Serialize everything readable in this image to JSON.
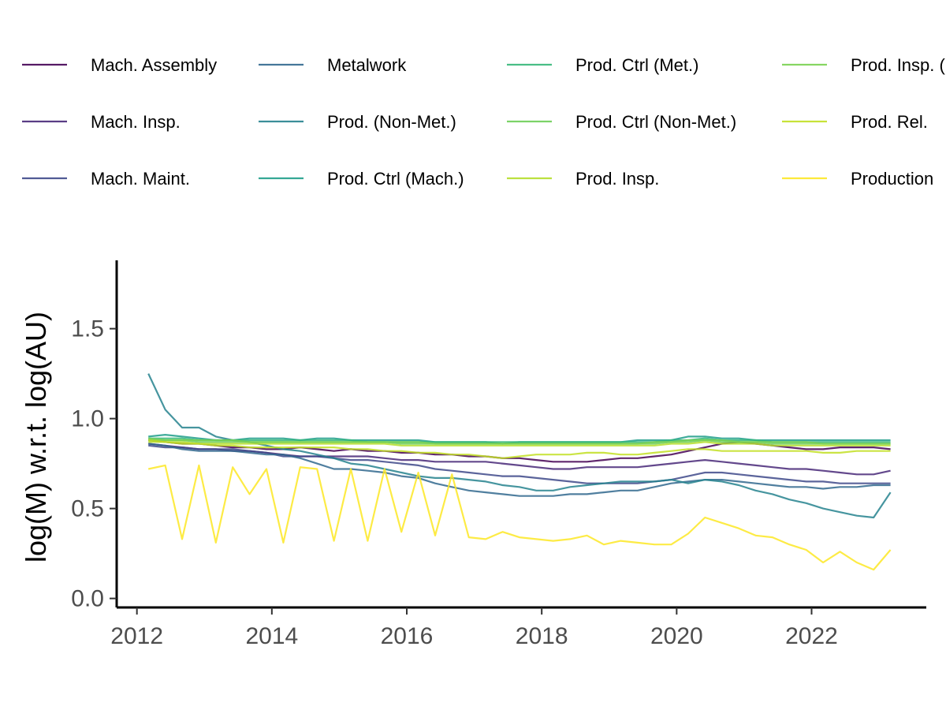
{
  "chart_data": {
    "type": "line",
    "title": "",
    "xlabel": "",
    "ylabel": "log(M) w.r.t. log(AU)",
    "xlim": [
      2011.7,
      2023.7
    ],
    "ylim": [
      -0.05,
      1.88
    ],
    "x_ticks": [
      2012,
      2014,
      2016,
      2018,
      2020,
      2022
    ],
    "x_tick_labels": [
      "2012",
      "2014",
      "2016",
      "2018",
      "2020",
      "2022"
    ],
    "y_ticks": [
      0.0,
      0.5,
      1.0,
      1.5
    ],
    "y_tick_labels": [
      "0.0",
      "0.5",
      "1.0",
      "1.5"
    ],
    "grid": false,
    "legend_position": "top",
    "x_sampling": {
      "start": 2012.17,
      "step": 0.25,
      "count": 45
    },
    "series": [
      {
        "name": "Mach. Assembly",
        "color": "#440154",
        "values": [
          0.88,
          0.87,
          0.86,
          0.86,
          0.85,
          0.84,
          0.84,
          0.83,
          0.83,
          0.84,
          0.83,
          0.82,
          0.83,
          0.82,
          0.82,
          0.81,
          0.81,
          0.8,
          0.8,
          0.79,
          0.79,
          0.78,
          0.78,
          0.77,
          0.76,
          0.76,
          0.76,
          0.77,
          0.78,
          0.78,
          0.79,
          0.8,
          0.82,
          0.84,
          0.86,
          0.87,
          0.86,
          0.85,
          0.84,
          0.83,
          0.83,
          0.84,
          0.84,
          0.84,
          0.83
        ]
      },
      {
        "name": "Mach. Insp.",
        "color": "#482878",
        "values": [
          0.86,
          0.85,
          0.84,
          0.83,
          0.83,
          0.82,
          0.82,
          0.81,
          0.8,
          0.79,
          0.79,
          0.79,
          0.79,
          0.79,
          0.78,
          0.77,
          0.77,
          0.76,
          0.76,
          0.76,
          0.76,
          0.75,
          0.74,
          0.73,
          0.72,
          0.72,
          0.73,
          0.73,
          0.73,
          0.73,
          0.74,
          0.75,
          0.76,
          0.77,
          0.76,
          0.75,
          0.74,
          0.73,
          0.72,
          0.72,
          0.71,
          0.7,
          0.69,
          0.69,
          0.71
        ]
      },
      {
        "name": "Mach. Maint.",
        "color": "#3e4989",
        "values": [
          0.85,
          0.84,
          0.84,
          0.83,
          0.83,
          0.83,
          0.82,
          0.81,
          0.79,
          0.79,
          0.79,
          0.78,
          0.77,
          0.77,
          0.76,
          0.75,
          0.74,
          0.72,
          0.71,
          0.7,
          0.69,
          0.68,
          0.68,
          0.67,
          0.66,
          0.65,
          0.64,
          0.64,
          0.64,
          0.64,
          0.65,
          0.66,
          0.68,
          0.7,
          0.7,
          0.69,
          0.68,
          0.67,
          0.66,
          0.65,
          0.65,
          0.64,
          0.64,
          0.64,
          0.64
        ]
      },
      {
        "name": "Metalwork",
        "color": "#31688e",
        "values": [
          0.86,
          0.85,
          0.83,
          0.82,
          0.82,
          0.82,
          0.81,
          0.8,
          0.8,
          0.78,
          0.75,
          0.72,
          0.72,
          0.71,
          0.7,
          0.68,
          0.67,
          0.64,
          0.62,
          0.6,
          0.59,
          0.58,
          0.57,
          0.57,
          0.57,
          0.58,
          0.58,
          0.59,
          0.6,
          0.6,
          0.62,
          0.64,
          0.65,
          0.66,
          0.66,
          0.65,
          0.64,
          0.63,
          0.62,
          0.62,
          0.61,
          0.62,
          0.62,
          0.63,
          0.63
        ]
      },
      {
        "name": "Prod. (Non-Met.)",
        "color": "#26828e",
        "values": [
          1.25,
          1.05,
          0.95,
          0.95,
          0.9,
          0.88,
          0.87,
          0.85,
          0.83,
          0.82,
          0.8,
          0.78,
          0.75,
          0.74,
          0.72,
          0.7,
          0.68,
          0.67,
          0.67,
          0.66,
          0.65,
          0.63,
          0.62,
          0.6,
          0.6,
          0.62,
          0.63,
          0.64,
          0.65,
          0.65,
          0.65,
          0.66,
          0.64,
          0.66,
          0.65,
          0.63,
          0.6,
          0.58,
          0.55,
          0.53,
          0.5,
          0.48,
          0.46,
          0.45,
          0.59
        ]
      },
      {
        "name": "Prod. Ctrl (Mach.)",
        "color": "#1f9e89",
        "values": [
          0.9,
          0.91,
          0.9,
          0.89,
          0.88,
          0.88,
          0.89,
          0.89,
          0.89,
          0.88,
          0.89,
          0.89,
          0.88,
          0.88,
          0.88,
          0.88,
          0.88,
          0.87,
          0.87,
          0.87,
          0.87,
          0.86,
          0.87,
          0.87,
          0.87,
          0.87,
          0.87,
          0.87,
          0.87,
          0.88,
          0.88,
          0.88,
          0.9,
          0.9,
          0.89,
          0.89,
          0.88,
          0.88,
          0.88,
          0.88,
          0.88,
          0.88,
          0.88,
          0.88,
          0.88
        ]
      },
      {
        "name": "Prod. Ctrl (Met.)",
        "color": "#35b779",
        "values": [
          0.89,
          0.89,
          0.89,
          0.88,
          0.88,
          0.88,
          0.88,
          0.88,
          0.88,
          0.88,
          0.88,
          0.88,
          0.88,
          0.87,
          0.87,
          0.87,
          0.87,
          0.87,
          0.87,
          0.87,
          0.87,
          0.87,
          0.87,
          0.87,
          0.87,
          0.87,
          0.87,
          0.87,
          0.87,
          0.87,
          0.87,
          0.88,
          0.88,
          0.89,
          0.88,
          0.88,
          0.88,
          0.87,
          0.87,
          0.87,
          0.87,
          0.87,
          0.87,
          0.87,
          0.87
        ]
      },
      {
        "name": "Prod. Ctrl (Non-Met.)",
        "color": "#6ece58",
        "values": [
          0.88,
          0.88,
          0.88,
          0.87,
          0.87,
          0.87,
          0.87,
          0.87,
          0.87,
          0.87,
          0.87,
          0.87,
          0.87,
          0.87,
          0.87,
          0.86,
          0.86,
          0.86,
          0.86,
          0.86,
          0.86,
          0.86,
          0.86,
          0.86,
          0.86,
          0.86,
          0.86,
          0.86,
          0.86,
          0.86,
          0.86,
          0.87,
          0.87,
          0.88,
          0.87,
          0.87,
          0.87,
          0.86,
          0.86,
          0.86,
          0.86,
          0.86,
          0.86,
          0.86,
          0.86
        ]
      },
      {
        "name": "Prod. Insp.",
        "color": "#b5de2b",
        "values": [
          0.87,
          0.87,
          0.87,
          0.86,
          0.86,
          0.86,
          0.86,
          0.86,
          0.86,
          0.86,
          0.86,
          0.86,
          0.86,
          0.86,
          0.86,
          0.85,
          0.85,
          0.85,
          0.85,
          0.85,
          0.85,
          0.85,
          0.85,
          0.85,
          0.85,
          0.85,
          0.85,
          0.85,
          0.85,
          0.85,
          0.85,
          0.86,
          0.86,
          0.87,
          0.86,
          0.86,
          0.86,
          0.85,
          0.85,
          0.85,
          0.85,
          0.85,
          0.85,
          0.85,
          0.85
        ]
      },
      {
        "name": "Prod. Insp. (Met.)",
        "color": "#7ad151",
        "values": [
          0.89,
          0.88,
          0.88,
          0.88,
          0.88,
          0.88,
          0.87,
          0.87,
          0.87,
          0.87,
          0.87,
          0.87,
          0.87,
          0.87,
          0.87,
          0.87,
          0.87,
          0.86,
          0.86,
          0.86,
          0.86,
          0.86,
          0.86,
          0.86,
          0.86,
          0.86,
          0.86,
          0.86,
          0.86,
          0.86,
          0.87,
          0.87,
          0.88,
          0.88,
          0.88,
          0.87,
          0.87,
          0.87,
          0.87,
          0.87,
          0.86,
          0.86,
          0.86,
          0.86,
          0.86
        ]
      },
      {
        "name": "Prod. Rel.",
        "color": "#c2df23",
        "values": [
          0.88,
          0.87,
          0.86,
          0.86,
          0.85,
          0.85,
          0.84,
          0.84,
          0.84,
          0.84,
          0.84,
          0.84,
          0.83,
          0.83,
          0.82,
          0.82,
          0.81,
          0.81,
          0.8,
          0.8,
          0.79,
          0.78,
          0.79,
          0.8,
          0.8,
          0.8,
          0.81,
          0.81,
          0.8,
          0.8,
          0.81,
          0.82,
          0.83,
          0.83,
          0.82,
          0.82,
          0.82,
          0.82,
          0.82,
          0.82,
          0.81,
          0.81,
          0.82,
          0.82,
          0.82
        ]
      },
      {
        "name": "Production",
        "color": "#fde725",
        "values": [
          0.72,
          0.74,
          0.33,
          0.74,
          0.31,
          0.73,
          0.58,
          0.72,
          0.31,
          0.73,
          0.72,
          0.32,
          0.72,
          0.32,
          0.72,
          0.37,
          0.7,
          0.35,
          0.69,
          0.34,
          0.33,
          0.37,
          0.34,
          0.33,
          0.32,
          0.33,
          0.35,
          0.3,
          0.32,
          0.31,
          0.3,
          0.3,
          0.36,
          0.45,
          0.42,
          0.39,
          0.35,
          0.34,
          0.3,
          0.27,
          0.2,
          0.26,
          0.2,
          0.16,
          0.27
        ]
      }
    ]
  }
}
